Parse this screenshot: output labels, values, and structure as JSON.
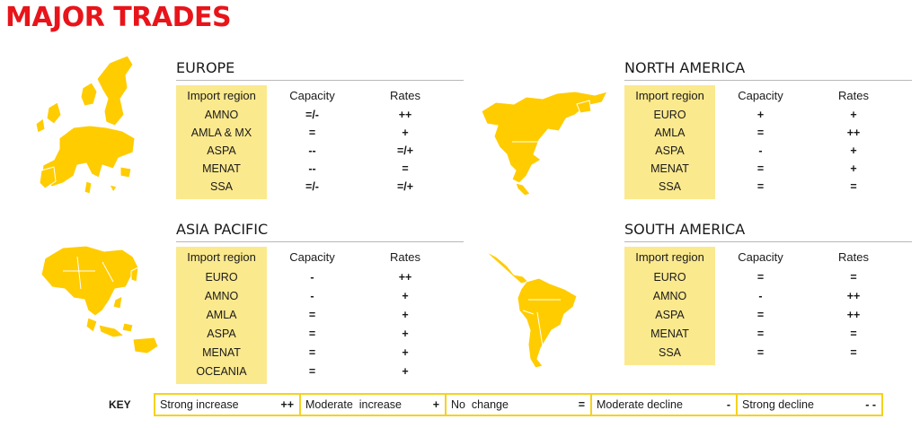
{
  "title": "MAJOR TRADES",
  "colors": {
    "title_red": "#e8141a",
    "map_yellow": "#ffcc00",
    "import_bg": "#fbe98e",
    "key_border": "#f5d21e"
  },
  "column_headers": {
    "import_region": "Import region",
    "capacity": "Capacity",
    "rates": "Rates"
  },
  "regions": [
    {
      "name": "EUROPE",
      "rows": [
        {
          "region": "AMNO",
          "capacity": "=/-",
          "rates": "++"
        },
        {
          "region": "AMLA & MX",
          "capacity": "=",
          "rates": "+"
        },
        {
          "region": "ASPA",
          "capacity": "--",
          "rates": "=/+"
        },
        {
          "region": "MENAT",
          "capacity": "--",
          "rates": "="
        },
        {
          "region": "SSA",
          "capacity": "=/-",
          "rates": "=/+"
        }
      ]
    },
    {
      "name": "NORTH AMERICA",
      "rows": [
        {
          "region": "EURO",
          "capacity": "+",
          "rates": "+"
        },
        {
          "region": "AMLA",
          "capacity": "=",
          "rates": "++"
        },
        {
          "region": "ASPA",
          "capacity": "-",
          "rates": "+"
        },
        {
          "region": "MENAT",
          "capacity": "=",
          "rates": "+"
        },
        {
          "region": "SSA",
          "capacity": "=",
          "rates": "="
        }
      ]
    },
    {
      "name": "ASIA PACIFIC",
      "rows": [
        {
          "region": "EURO",
          "capacity": "-",
          "rates": "++"
        },
        {
          "region": "AMNO",
          "capacity": "-",
          "rates": "+"
        },
        {
          "region": "AMLA",
          "capacity": "=",
          "rates": "+"
        },
        {
          "region": "ASPA",
          "capacity": "=",
          "rates": "+"
        },
        {
          "region": "MENAT",
          "capacity": "=",
          "rates": "+"
        },
        {
          "region": "OCEANIA",
          "capacity": "=",
          "rates": "+"
        }
      ]
    },
    {
      "name": "SOUTH AMERICA",
      "rows": [
        {
          "region": "EURO",
          "capacity": "=",
          "rates": "="
        },
        {
          "region": "AMNO",
          "capacity": "-",
          "rates": "++"
        },
        {
          "region": "ASPA",
          "capacity": "=",
          "rates": "++"
        },
        {
          "region": "MENAT",
          "capacity": "=",
          "rates": "="
        },
        {
          "region": "SSA",
          "capacity": "=",
          "rates": "="
        }
      ]
    }
  ],
  "key": {
    "label": "KEY",
    "items": [
      {
        "label": "Strong increase",
        "symbol": "++"
      },
      {
        "label": "Moderate  increase",
        "symbol": "+"
      },
      {
        "label": "No  change",
        "symbol": "="
      },
      {
        "label": "Moderate decline",
        "symbol": "-"
      },
      {
        "label": "Strong decline",
        "symbol": "- -"
      }
    ]
  },
  "maps": [
    {
      "name": "europe-map-icon"
    },
    {
      "name": "north-america-map-icon"
    },
    {
      "name": "asia-pacific-map-icon"
    },
    {
      "name": "south-america-map-icon"
    }
  ]
}
